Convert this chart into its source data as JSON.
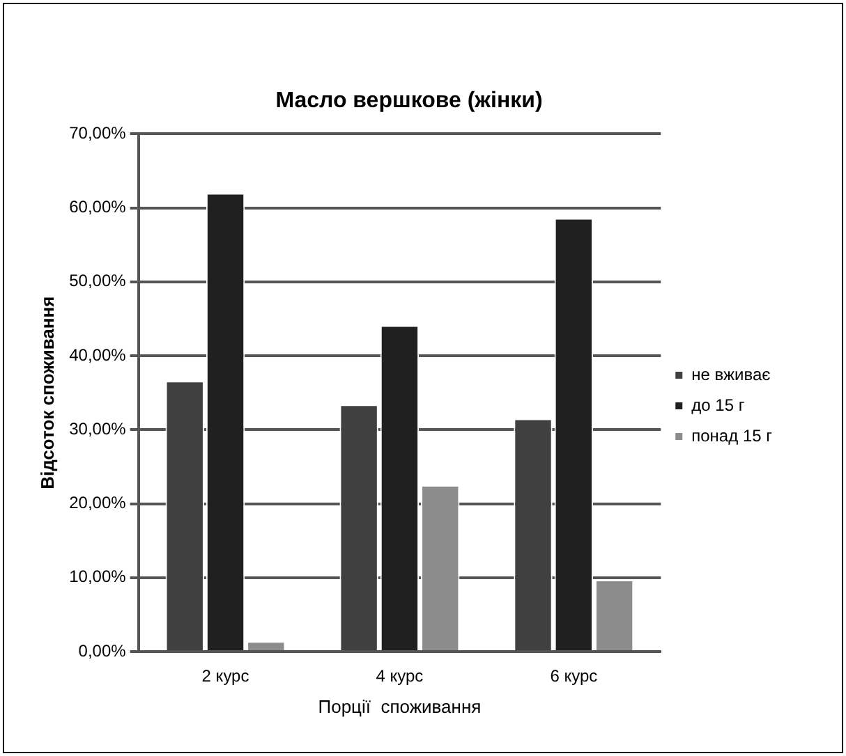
{
  "chart_data": {
    "type": "bar",
    "title": "Масло вершкове (жінки)",
    "xlabel": "Порції  споживання",
    "ylabel": "Відсоток споживання",
    "categories": [
      "2 курс",
      "4 курс",
      "6 курс"
    ],
    "series": [
      {
        "name": "не вживає",
        "color": "#404040",
        "values": [
          36.6,
          33.4,
          31.5
        ]
      },
      {
        "name": "до 15 г",
        "color": "#202020",
        "values": [
          62.0,
          44.1,
          58.6
        ]
      },
      {
        "name": "понад 15 г",
        "color": "#8c8c8c",
        "values": [
          1.4,
          22.5,
          9.7
        ]
      }
    ],
    "ylim": [
      0,
      70
    ],
    "yticks": [
      {
        "value": 0,
        "label": "0,00%"
      },
      {
        "value": 10,
        "label": "10,00%"
      },
      {
        "value": 20,
        "label": "20,00%"
      },
      {
        "value": 30,
        "label": "30,00%"
      },
      {
        "value": 40,
        "label": "40,00%"
      },
      {
        "value": 50,
        "label": "50,00%"
      },
      {
        "value": 60,
        "label": "60,00%"
      },
      {
        "value": 70,
        "label": "70,00%"
      }
    ],
    "grid": "y",
    "legend": "right"
  }
}
